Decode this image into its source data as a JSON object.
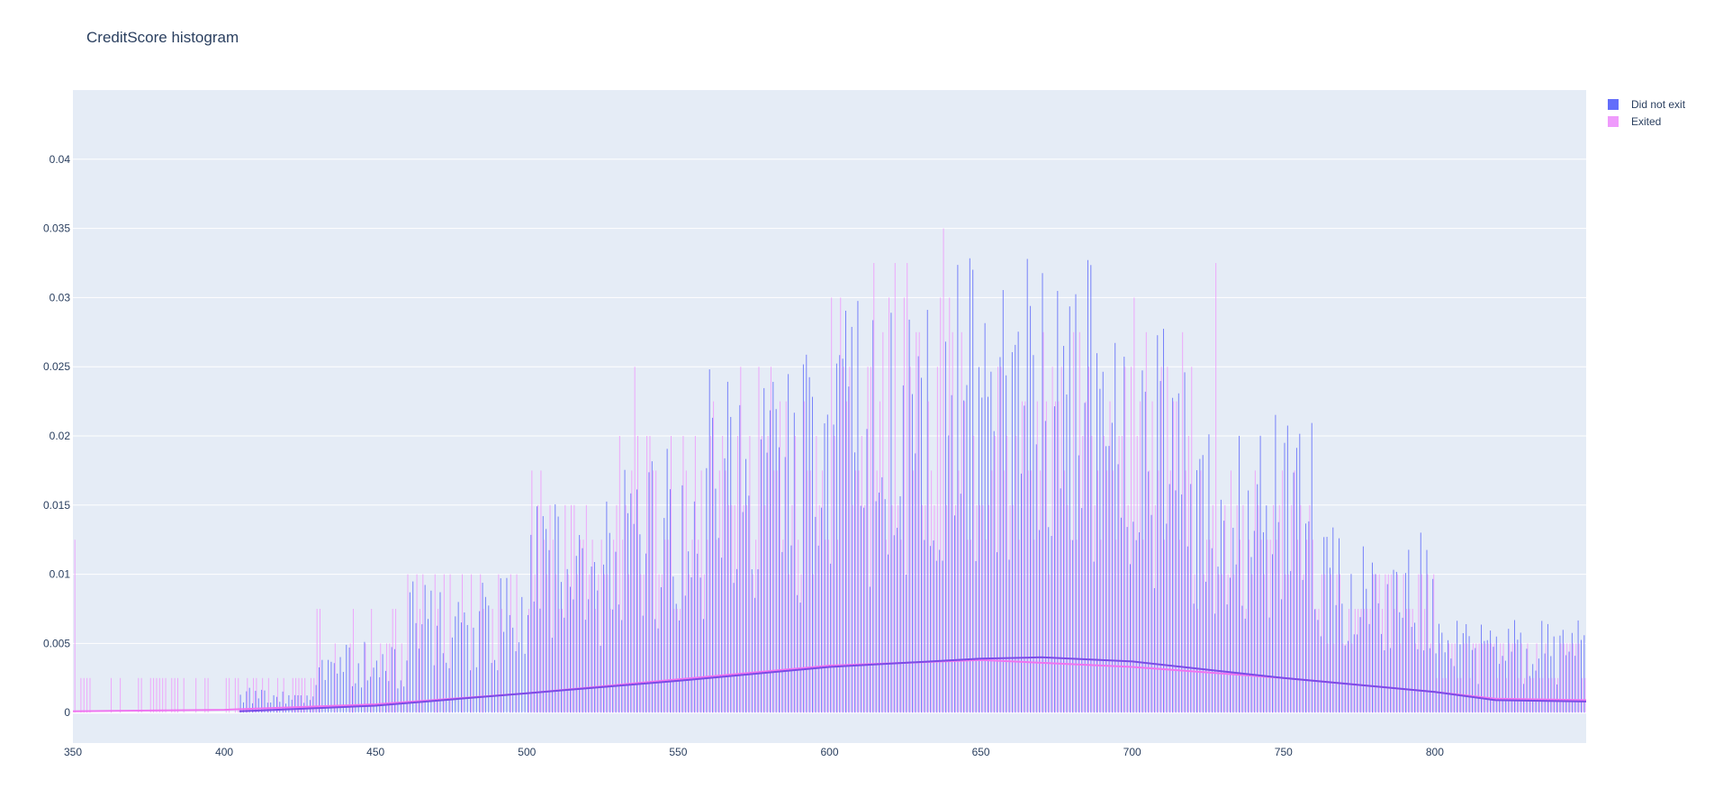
{
  "chart_data": {
    "type": "histogram",
    "title": "CreditScore histogram",
    "xlabel": "",
    "ylabel": "",
    "xlim": [
      350,
      850
    ],
    "ylim": [
      -0.0022,
      0.045
    ],
    "x_ticks": [
      350,
      400,
      450,
      500,
      550,
      600,
      650,
      700,
      750,
      800
    ],
    "y_ticks": [
      0,
      0.005,
      0.01,
      0.015,
      0.02,
      0.025,
      0.03,
      0.035,
      0.04
    ],
    "y_tick_labels": [
      "0",
      "0.005",
      "0.01",
      "0.015",
      "0.02",
      "0.025",
      "0.03",
      "0.035",
      "0.04"
    ],
    "grid": true,
    "legend_position": "top-right",
    "plot_background": "#e5ecf6",
    "series": [
      {
        "name": "Did not exit",
        "color": "#636efa",
        "x_start": 405,
        "x_end": 850,
        "bin_values_by_range": [
          {
            "range": [
              405,
              430
            ],
            "approx": 0.0012
          },
          {
            "range": [
              430,
              460
            ],
            "approx": 0.0035
          },
          {
            "range": [
              460,
              500
            ],
            "approx": 0.0065
          },
          {
            "range": [
              500,
              530
            ],
            "approx": 0.0105
          },
          {
            "range": [
              530,
              560
            ],
            "approx": 0.0135
          },
          {
            "range": [
              560,
              600
            ],
            "approx": 0.0175
          },
          {
            "range": [
              600,
              640
            ],
            "approx": 0.02
          },
          {
            "range": [
              640,
              690
            ],
            "approx": 0.022
          },
          {
            "range": [
              690,
              720
            ],
            "approx": 0.019
          },
          {
            "range": [
              720,
              760
            ],
            "approx": 0.0145
          },
          {
            "range": [
              760,
              800
            ],
            "approx": 0.009
          },
          {
            "range": [
              800,
              850
            ],
            "approx": 0.0045
          }
        ],
        "kde": [
          [
            405,
            0.0001
          ],
          [
            450,
            0.0005
          ],
          [
            500,
            0.0014
          ],
          [
            550,
            0.0023
          ],
          [
            600,
            0.0033
          ],
          [
            650,
            0.0039
          ],
          [
            670,
            0.004
          ],
          [
            700,
            0.0037
          ],
          [
            750,
            0.0025
          ],
          [
            800,
            0.0015
          ],
          [
            820,
            0.0009
          ],
          [
            850,
            0.0008
          ]
        ]
      },
      {
        "name": "Exited",
        "color": "#ef9bfc",
        "x_start": 350,
        "x_end": 850,
        "bin_values_by_range": [
          {
            "range": [
              350,
              405
            ],
            "approx": 0.0025
          },
          {
            "range": [
              405,
              430
            ],
            "approx": 0.0025
          },
          {
            "range": [
              430,
              460
            ],
            "approx": 0.005
          },
          {
            "range": [
              460,
              500
            ],
            "approx": 0.0075
          },
          {
            "range": [
              500,
              530
            ],
            "approx": 0.0125
          },
          {
            "range": [
              530,
              560
            ],
            "approx": 0.015
          },
          {
            "range": [
              560,
              600
            ],
            "approx": 0.0175
          },
          {
            "range": [
              600,
              640
            ],
            "approx": 0.0225
          },
          {
            "range": [
              640,
              690
            ],
            "approx": 0.02
          },
          {
            "range": [
              690,
              720
            ],
            "approx": 0.02
          },
          {
            "range": [
              720,
              760
            ],
            "approx": 0.0125
          },
          {
            "range": [
              760,
              800
            ],
            "approx": 0.0075
          },
          {
            "range": [
              800,
              850
            ],
            "approx": 0.004
          }
        ],
        "peaks": [
          [
            350,
            0.0125
          ],
          [
            535,
            0.025
          ],
          [
            580,
            0.025
          ],
          [
            600,
            0.03
          ],
          [
            625,
            0.0325
          ],
          [
            637,
            0.035
          ],
          [
            700,
            0.03
          ],
          [
            727,
            0.0325
          ]
        ],
        "kde": [
          [
            350,
            0.0001
          ],
          [
            400,
            0.0002
          ],
          [
            450,
            0.0006
          ],
          [
            500,
            0.0014
          ],
          [
            550,
            0.0024
          ],
          [
            600,
            0.0034
          ],
          [
            650,
            0.0038
          ],
          [
            700,
            0.0033
          ],
          [
            750,
            0.0025
          ],
          [
            800,
            0.0015
          ],
          [
            820,
            0.001
          ],
          [
            850,
            0.0009
          ]
        ]
      }
    ]
  }
}
